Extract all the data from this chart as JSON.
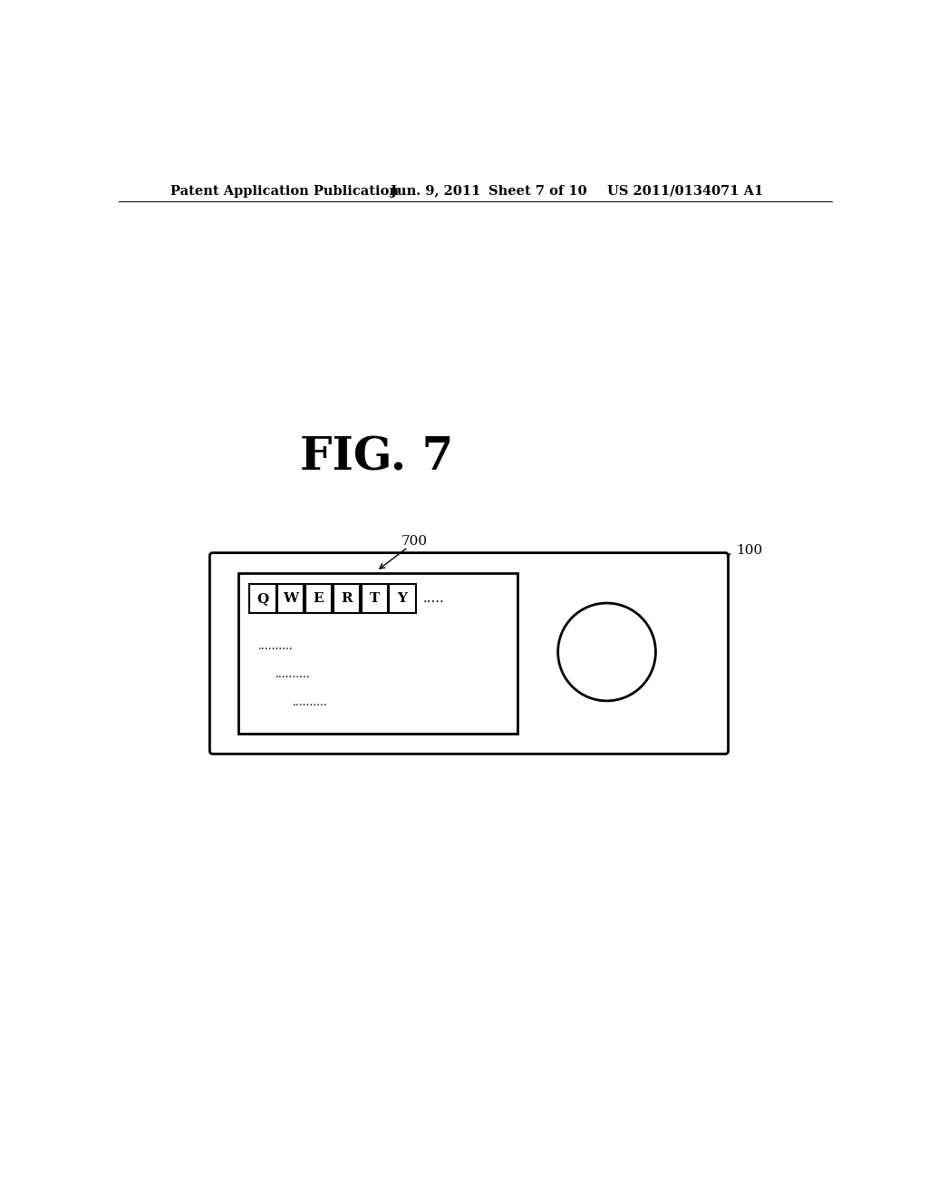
{
  "background_color": "#ffffff",
  "header_text": "Patent Application Publication",
  "header_date": "Jun. 9, 2011",
  "header_sheet": "Sheet 7 of 10",
  "header_patent": "US 2011/0134071 A1",
  "fig_label": "FIG. 7",
  "label_100": "100",
  "label_700": "700",
  "keys": [
    "Q",
    "W",
    "E",
    "R",
    "T",
    "Y"
  ],
  "key_dots": ".....",
  "dots_row1": "..........",
  "dots_row2": "..........",
  "dots_row3": ".........."
}
